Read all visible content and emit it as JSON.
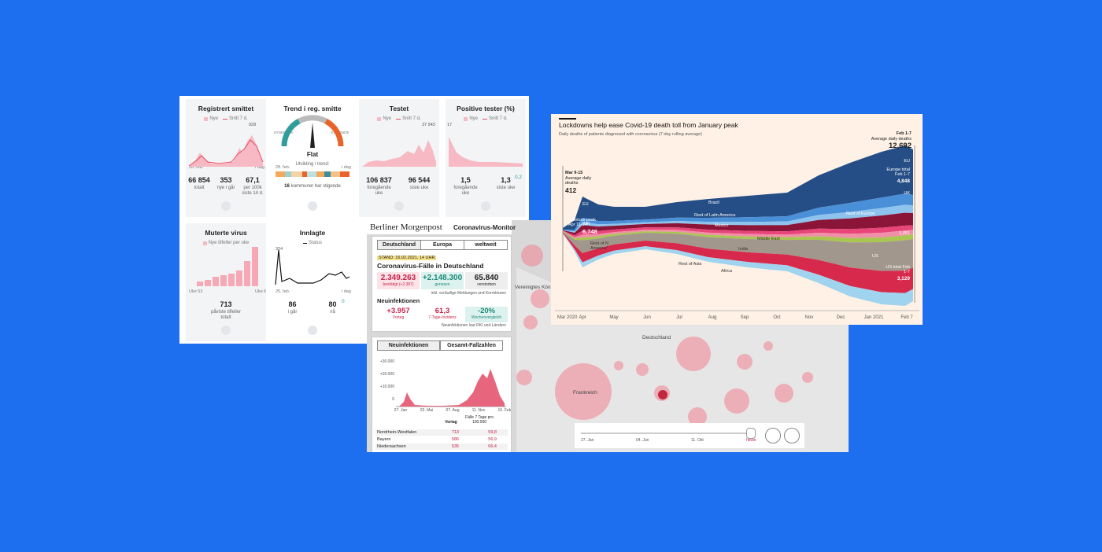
{
  "norway": {
    "cards": [
      {
        "title": "Registrert smittet",
        "legend": [
          "Nye",
          "Snitt 7 d."
        ],
        "peak": "928",
        "axis": [
          "28. feb.",
          "i dag"
        ],
        "stats": [
          {
            "value": "66 854",
            "label": "totalt"
          },
          {
            "value": "353",
            "label": "nye i går"
          },
          {
            "value": "67,1",
            "label": "per 100k siste 14 d."
          }
        ]
      },
      {
        "title": "Trend i reg. smitte",
        "gauge": [
          "SYNKENDE",
          "FLAT",
          "STIGENDE"
        ],
        "status": "Flat",
        "trend_label": "Utvikling i trend:",
        "axis": [
          "28. feb.",
          "i dag"
        ],
        "count": "16",
        "count_label": "kommuner har stigende"
      },
      {
        "title": "Testet",
        "legend": [
          "Nye",
          "Snitt 7 d."
        ],
        "peak": "37 943",
        "stats": [
          {
            "value": "106 837",
            "label": "foregående uke"
          },
          {
            "value": "96 544",
            "label": "siste uke"
          }
        ]
      },
      {
        "title": "Positive tester (%)",
        "legend": [
          "Nye",
          "Snitt 7 d."
        ],
        "peak": "17",
        "stats": [
          {
            "value": "1,5",
            "label": "foregående uke"
          },
          {
            "value": "1,3",
            "label": "siste uke"
          }
        ],
        "change": "0,2"
      },
      {
        "title": "Muterte virus",
        "legend": [
          "Nye tilfeller per uke"
        ],
        "axis": [
          "Uke 53",
          "Uke 6"
        ],
        "stats": [
          {
            "value": "713",
            "label": "påviste tilfeller totalt"
          }
        ]
      },
      {
        "title": "Innlagte",
        "legend": [
          "Status"
        ],
        "peak": "324",
        "axis": [
          "25. feb.",
          "i dag"
        ],
        "stats": [
          {
            "value": "86",
            "label": "i går"
          },
          {
            "value": "80",
            "label": "nå"
          }
        ],
        "change": "0"
      }
    ]
  },
  "berlin": {
    "logo": "Berliner Morgenpost",
    "app": "Coronavirus-Monitor",
    "tabs": [
      "Deutschland",
      "Europa",
      "weltweit"
    ],
    "stand": "STAND: 16.02.2021, 14 UHR",
    "heading": "Coronavirus-Fälle in Deutschland",
    "totals": [
      {
        "value": "2.349.263",
        "label": "bestätigt (+2.387)"
      },
      {
        "value": "+2.148.300",
        "label": "genesen"
      },
      {
        "value": "65.840",
        "label": "verstorben"
      }
    ],
    "totals_note": "inkl. vorläufige Meldungen und Korrekturen",
    "new_heading": "Neuinfektionen",
    "new": [
      {
        "value": "+3.957",
        "label": "Vortag"
      },
      {
        "value": "61,3",
        "label": "7-Tage-Inzidenz"
      },
      {
        "value": "-20%",
        "label": "Wochenvergleich"
      }
    ],
    "new_note": "Neuinfektionen laut RKI und Ländern",
    "chart_tabs": [
      "Neuinfektionen",
      "Gesamt-Fallzahlen"
    ],
    "yticks": [
      "+30.000",
      "+20.000",
      "+10.000",
      "0"
    ],
    "xticks": [
      "27. Jan",
      "02. Mai",
      "07. Aug",
      "11. Nov",
      "16. Feb"
    ],
    "table_header": [
      "Vortag",
      "Fälle 7 Tage pro 100.000"
    ],
    "rows": [
      [
        "Nordrhein-Westfalen",
        "713",
        "59,8"
      ],
      [
        "Bayern",
        "586",
        "56,9"
      ],
      [
        "Niedersachsen",
        "535",
        "66,4"
      ]
    ],
    "map_labels": [
      "Vereinigtes Köni",
      "Deutschland",
      "Frankreich"
    ],
    "slider": [
      "27. Jan",
      "04. Jun",
      "11. Okt",
      "heute"
    ]
  },
  "ft": {
    "title": "Lockdowns help ease Covid-19 death toll from January peak",
    "subtitle": "Daily deaths of patients diagnosed with coronavirus (7-day rolling average)",
    "xticks": [
      "Mar 2020",
      "Apr",
      "May",
      "Jun",
      "Jul",
      "Aug",
      "Sep",
      "Oct",
      "Nov",
      "Dec",
      "Jan 2021",
      "Feb 7"
    ],
    "series_labels": [
      "EU",
      "UK",
      "Brazil",
      "Rest of Latin America",
      "Mexico",
      "Rest of Europe",
      "Rest of N America*",
      "India",
      "Middle East",
      "Rest of Asia",
      "Africa",
      "US"
    ],
    "start": {
      "period": "Mar 9-15",
      "label": "Average daily deaths",
      "value": "412"
    },
    "previous": {
      "label": "Previous peak Apr 11-17",
      "value": "6,748"
    },
    "end": {
      "period": "Feb 1-7",
      "label": "Average daily deaths",
      "value": "12,692"
    },
    "end_labels": [
      {
        "label": "EU"
      },
      {
        "label": "Europe total Feb 1-7",
        "value": "4,848"
      },
      {
        "label": "UK"
      },
      {
        "label": "1,051"
      },
      {
        "label": "US total Feb 1-7",
        "value": "3,129"
      }
    ]
  }
}
